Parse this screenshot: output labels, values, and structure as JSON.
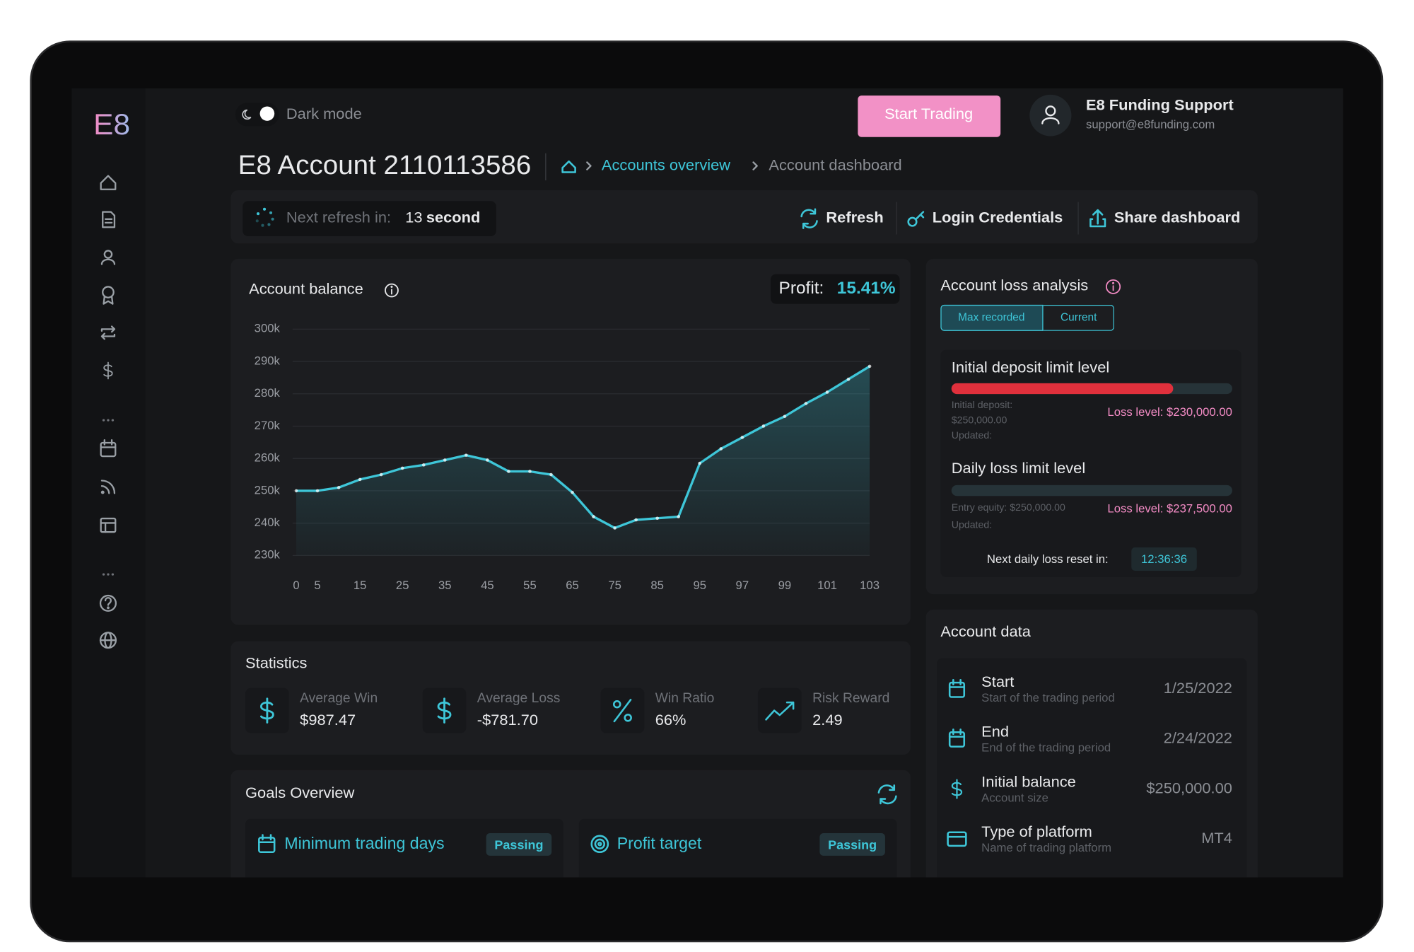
{
  "sidebar": {
    "logo": "E8"
  },
  "header": {
    "dark_mode": "Dark mode",
    "start_trading": "Start Trading",
    "user_name": "E8 Funding Support",
    "user_email": "support@e8funding.com"
  },
  "page_title": "E8 Account 2110113586",
  "breadcrumb": [
    "Accounts overview",
    "Account dashboard"
  ],
  "toolbar": {
    "next_refresh": "Next refresh in:",
    "seconds": "13",
    "unit": "second",
    "actions": [
      "Refresh",
      "Login Credentials",
      "Share dashboard"
    ]
  },
  "balance_card": {
    "profit_label": "Profit:",
    "profit": "15.41%"
  },
  "chart_data": {
    "type": "line",
    "title": "Account balance",
    "categories": [
      0,
      5,
      null,
      15,
      null,
      25,
      null,
      35,
      null,
      45,
      null,
      55,
      null,
      65,
      null,
      75,
      null,
      85,
      null,
      95,
      null,
      97,
      null,
      99,
      null,
      101,
      null,
      103
    ],
    "series": [
      {
        "color": "#3ec6d8",
        "values": [
          250000,
          250000,
          251000,
          253500,
          255000,
          257000,
          258000,
          259500,
          261000,
          259500,
          256000,
          256000,
          255000,
          249500,
          242000,
          238500,
          241000,
          241500,
          242000,
          258500,
          263000,
          266500,
          270000,
          273000,
          277000,
          280500,
          284500,
          288500
        ]
      }
    ],
    "ylim": [
      230000,
      300000
    ],
    "yticks": [
      {
        "value": 230000,
        "label": "230k"
      },
      {
        "value": 240000,
        "label": "240k"
      },
      {
        "value": 250000,
        "label": "250k"
      },
      {
        "value": 260000,
        "label": "260k"
      },
      {
        "value": 270000,
        "label": "270k"
      },
      {
        "value": 280000,
        "label": "280k"
      },
      {
        "value": 290000,
        "label": "290k"
      },
      {
        "value": 300000,
        "label": "300k"
      }
    ],
    "grid": true
  },
  "statistics": {
    "title": "Statistics",
    "items": [
      {
        "label": "Average Win",
        "value": "$987.47"
      },
      {
        "label": "Average Loss",
        "value": "-$781.70"
      },
      {
        "label": "Win Ratio",
        "value": "66%"
      },
      {
        "label": "Risk Reward",
        "value": "2.49"
      }
    ]
  },
  "goals": {
    "title": "Goals Overview",
    "items": [
      {
        "label": "Minimum trading days",
        "status": "Passing"
      },
      {
        "label": "Profit target",
        "status": "Passing"
      }
    ]
  },
  "loss_analysis": {
    "title": "Account loss analysis",
    "tabs": [
      "Max recorded",
      "Current"
    ],
    "levels": [
      {
        "title": "Initial deposit limit level",
        "details": [
          "Initial deposit:",
          "$250,000.00",
          "Updated:"
        ],
        "loss_level": "Loss level: $230,000.00",
        "progress": 79
      },
      {
        "title": "Daily loss limit level",
        "details": [
          "Entry equity: $250,000.00",
          "Updated:"
        ],
        "loss_level": "Loss level: $237,500.00",
        "progress": 0
      }
    ],
    "reset_label": "Next daily loss reset in:",
    "reset_time": "12:36:36"
  },
  "account_data": {
    "title": "Account data",
    "rows": [
      {
        "label": "Start",
        "sub": "Start of the trading period",
        "value": "1/25/2022"
      },
      {
        "label": "End",
        "sub": "End of the trading period",
        "value": "2/24/2022"
      },
      {
        "label": "Initial balance",
        "sub": "Account size",
        "value": "$250,000.00"
      },
      {
        "label": "Type of platform",
        "sub": "Name of trading platform",
        "value": "MT4"
      }
    ]
  }
}
